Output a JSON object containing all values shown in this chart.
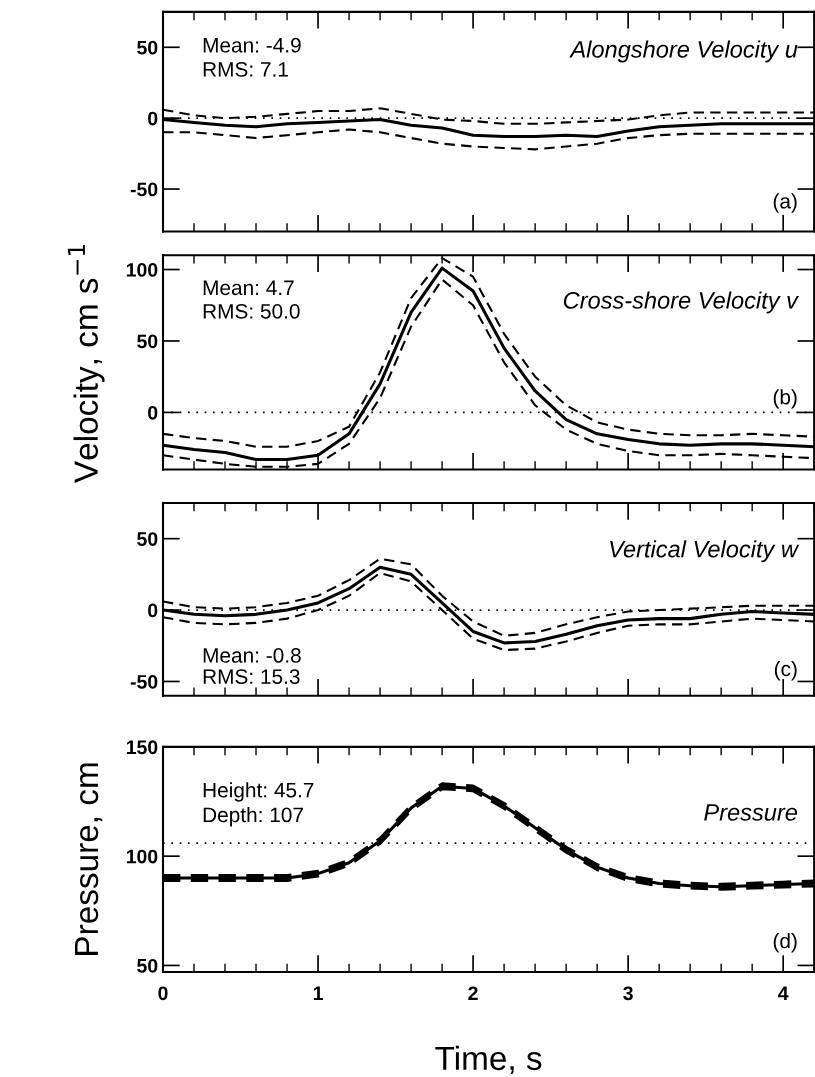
{
  "chart_data": [
    {
      "type": "line",
      "title": "Alongshore Velocity u",
      "annotations": [
        "Mean: -4.9",
        "RMS: 7.1",
        "(a)"
      ],
      "x": [
        0,
        0.2,
        0.4,
        0.6,
        0.8,
        1.0,
        1.2,
        1.4,
        1.6,
        1.8,
        2.0,
        2.2,
        2.4,
        2.6,
        2.8,
        3.0,
        3.2,
        3.4,
        3.6,
        3.8,
        4.0,
        4.2
      ],
      "series": [
        {
          "color": "#000000",
          "line_style": "solid",
          "values": [
            -1,
            -3,
            -5,
            -6,
            -4,
            -3,
            -2,
            -1,
            -5,
            -7,
            -12,
            -13,
            -13,
            -12,
            -13,
            -9,
            -6,
            -5,
            -4,
            -4,
            -4,
            -4
          ]
        },
        {
          "color": "#000000",
          "line_style": "dashed",
          "values": [
            6,
            2,
            0,
            1,
            3,
            5,
            5,
            7,
            3,
            -1,
            -2,
            -4,
            -4,
            -3,
            -2,
            -1,
            2,
            4,
            4,
            4,
            4,
            4
          ]
        },
        {
          "color": "#000000",
          "line_style": "dashed",
          "values": [
            -10,
            -10,
            -12,
            -14,
            -12,
            -10,
            -8,
            -10,
            -14,
            -18,
            -20,
            -21,
            -22,
            -20,
            -18,
            -14,
            -12,
            -11,
            -11,
            -11,
            -11,
            -11
          ]
        }
      ],
      "ref_lines": [
        {
          "axis": "y",
          "value": 0,
          "line_style": "dotted",
          "color": "#000000"
        }
      ],
      "xlim": [
        0,
        4.2
      ],
      "xticks": [
        0,
        1,
        2,
        3,
        4
      ],
      "ylim": [
        -80,
        75
      ],
      "yticks": [
        -50,
        0,
        50
      ],
      "tick_labels": "y"
    },
    {
      "type": "line",
      "title": "Cross-shore Velocity v",
      "ylabel": "Velocity, cm s$^{−1}$",
      "annotations": [
        "Mean: 4.7",
        "RMS: 50.0",
        "(b)"
      ],
      "x": [
        0,
        0.2,
        0.4,
        0.6,
        0.8,
        1.0,
        1.2,
        1.4,
        1.6,
        1.8,
        2.0,
        2.2,
        2.4,
        2.6,
        2.8,
        3.0,
        3.2,
        3.4,
        3.6,
        3.8,
        4.0,
        4.2
      ],
      "series": [
        {
          "color": "#000000",
          "line_style": "solid",
          "values": [
            -23,
            -26,
            -28,
            -33,
            -33,
            -30,
            -15,
            20,
            70,
            101,
            85,
            45,
            15,
            -5,
            -15,
            -19,
            -22,
            -23,
            -22,
            -22,
            -23,
            -24
          ]
        },
        {
          "color": "#000000",
          "line_style": "dashed",
          "values": [
            -15,
            -18,
            -20,
            -24,
            -24,
            -20,
            -10,
            28,
            80,
            108,
            95,
            55,
            25,
            5,
            -7,
            -12,
            -15,
            -16,
            -16,
            -15,
            -16,
            -17
          ]
        },
        {
          "color": "#000000",
          "line_style": "dashed",
          "values": [
            -30,
            -33,
            -36,
            -38,
            -38,
            -36,
            -22,
            10,
            60,
            93,
            75,
            35,
            5,
            -12,
            -22,
            -27,
            -30,
            -30,
            -29,
            -30,
            -31,
            -32
          ]
        }
      ],
      "ref_lines": [
        {
          "axis": "y",
          "value": 0,
          "line_style": "dotted",
          "color": "#000000"
        }
      ],
      "xlim": [
        0,
        4.2
      ],
      "xticks": [
        0,
        1,
        2,
        3,
        4
      ],
      "ylim": [
        -40,
        110
      ],
      "yticks": [
        0,
        50,
        100
      ],
      "tick_labels": "y"
    },
    {
      "type": "line",
      "title": "Vertical Velocity w",
      "annotations": [
        "Mean: -0.8",
        "RMS: 15.3",
        "(c)"
      ],
      "x": [
        0,
        0.2,
        0.4,
        0.6,
        0.8,
        1.0,
        1.2,
        1.4,
        1.6,
        1.8,
        2.0,
        2.2,
        2.4,
        2.6,
        2.8,
        3.0,
        3.2,
        3.4,
        3.6,
        3.8,
        4.0,
        4.2
      ],
      "series": [
        {
          "color": "#000000",
          "line_style": "solid",
          "values": [
            0,
            -3,
            -4,
            -3,
            0,
            5,
            15,
            30,
            25,
            5,
            -15,
            -23,
            -22,
            -17,
            -11,
            -7,
            -6,
            -6,
            -3,
            -1,
            -2,
            -3
          ]
        },
        {
          "color": "#000000",
          "line_style": "dashed",
          "values": [
            6,
            2,
            1,
            2,
            5,
            10,
            21,
            36,
            32,
            10,
            -8,
            -18,
            -16,
            -10,
            -5,
            -1,
            0,
            1,
            2,
            3,
            3,
            3
          ]
        },
        {
          "color": "#000000",
          "line_style": "dashed",
          "values": [
            -5,
            -9,
            -10,
            -9,
            -6,
            0,
            10,
            26,
            20,
            0,
            -20,
            -28,
            -27,
            -22,
            -16,
            -11,
            -10,
            -10,
            -8,
            -6,
            -7,
            -8
          ]
        }
      ],
      "ref_lines": [
        {
          "axis": "y",
          "value": 0,
          "line_style": "dotted",
          "color": "#000000"
        }
      ],
      "xlim": [
        0,
        4.2
      ],
      "xticks": [
        0,
        1,
        2,
        3,
        4
      ],
      "ylim": [
        -60,
        75
      ],
      "yticks": [
        -50,
        0,
        50
      ],
      "tick_labels": "y"
    },
    {
      "type": "line",
      "title": "Pressure",
      "ylabel": "Pressure, cm",
      "xlabel": "Time, s",
      "annotations": [
        "Height: 45.7",
        "Depth: 107",
        "(d)"
      ],
      "x": [
        0,
        0.2,
        0.4,
        0.6,
        0.8,
        1.0,
        1.2,
        1.4,
        1.6,
        1.8,
        2.0,
        2.2,
        2.4,
        2.6,
        2.8,
        3.0,
        3.2,
        3.4,
        3.6,
        3.8,
        4.0,
        4.2
      ],
      "series": [
        {
          "color": "#000000",
          "line_style": "solid",
          "values": [
            90,
            90,
            90,
            90,
            90,
            92,
            97,
            107,
            122,
            132,
            131,
            123,
            113,
            103,
            95,
            90,
            87.5,
            86.5,
            86,
            86.5,
            87,
            87.5
          ]
        },
        {
          "color": "#000000",
          "line_style": "dashed",
          "values": [
            91,
            91,
            91,
            91,
            91,
            93,
            98,
            108,
            123,
            133,
            132,
            124,
            114,
            104,
            96,
            91,
            88.5,
            87.5,
            87,
            87.5,
            88,
            88.5
          ]
        },
        {
          "color": "#000000",
          "line_style": "dashed",
          "values": [
            89,
            89,
            89,
            89,
            89,
            91,
            96,
            106,
            121,
            131,
            130,
            122,
            112,
            102,
            94,
            89,
            86.5,
            85.5,
            85,
            85.5,
            86,
            86.5
          ]
        }
      ],
      "ref_lines": [
        {
          "axis": "y",
          "value": 106,
          "line_style": "dotted",
          "color": "#000000"
        }
      ],
      "xlim": [
        0,
        4.2
      ],
      "xticks": [
        0,
        1,
        2,
        3,
        4
      ],
      "ylim": [
        47,
        150
      ],
      "yticks": [
        50,
        100,
        150
      ]
    }
  ]
}
